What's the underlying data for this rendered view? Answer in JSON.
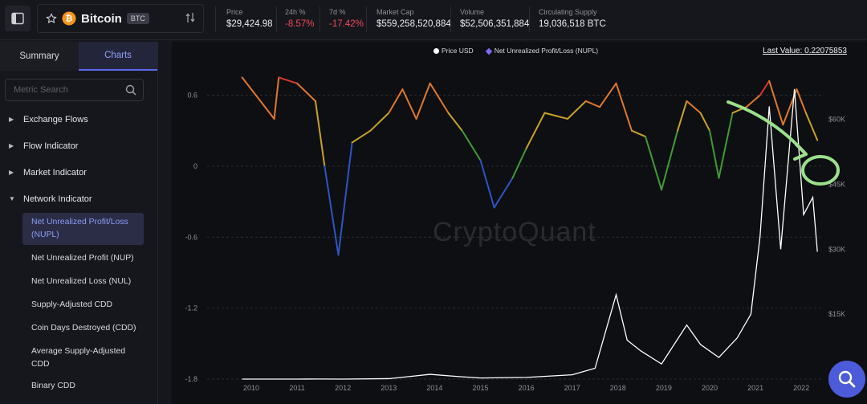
{
  "header": {
    "asset_name": "Bitcoin",
    "asset_ticker": "BTC",
    "stats": [
      {
        "label": "Price",
        "value": "$29,424.98"
      },
      {
        "label": "24h %",
        "value": "-8.57%"
      },
      {
        "label": "7d %",
        "value": "-17.42%"
      },
      {
        "label": "Market Cap",
        "value": "$559,258,520,884"
      },
      {
        "label": "Volume",
        "value": "$52,506,351,884"
      },
      {
        "label": "Circulating Supply",
        "value": "19,036,518 BTC"
      }
    ]
  },
  "sidebar": {
    "tabs": [
      "Summary",
      "Charts"
    ],
    "search_placeholder": "Metric Search",
    "categories": [
      "Exchange Flows",
      "Flow Indicator",
      "Market Indicator",
      "Network Indicator"
    ],
    "subitems": [
      "Net Unrealized Profit/Loss (NUPL)",
      "Net Unrealized Profit (NUP)",
      "Net Unrealized Loss (NUL)",
      "Supply-Adjusted CDD",
      "Coin Days Destroyed (CDD)",
      "Average Supply-Adjusted CDD",
      "Binary CDD"
    ]
  },
  "chart": {
    "legend": [
      "Price USD",
      "Net Unrealized Profit/Loss (NUPL)"
    ],
    "last_value": "Last Value: 0.22075853",
    "watermark": "CryptoQuant"
  },
  "colors": {
    "accent": "#5b6cf0",
    "negative": "#ef4a5a",
    "price_line": "#ffffff"
  },
  "chart_data": {
    "type": "line",
    "left_axis": {
      "ticks": [
        "0.6",
        "0",
        "-0.6",
        "-1.2",
        "-1.8"
      ],
      "values": [
        0.6,
        0,
        -0.6,
        -1.2,
        -1.8
      ]
    },
    "right_axis": {
      "ticks": [
        "$60K",
        "$45K",
        "$30K",
        "$15K"
      ],
      "values": [
        60000,
        45000,
        30000,
        15000
      ]
    },
    "x_ticks": [
      "2010",
      "2011",
      "2012",
      "2013",
      "2014",
      "2015",
      "2016",
      "2017",
      "2018",
      "2019",
      "2020",
      "2021",
      "2022"
    ],
    "series": [
      {
        "name": "Price USD",
        "x": [
          2009.8,
          2010.5,
          2011.0,
          2011.45,
          2012.0,
          2013.0,
          2013.9,
          2014.5,
          2015.0,
          2016.0,
          2017.0,
          2017.5,
          2017.96,
          2018.2,
          2018.5,
          2018.95,
          2019.5,
          2019.8,
          2020.2,
          2020.6,
          2020.9,
          2021.1,
          2021.3,
          2021.55,
          2021.85,
          2022.05,
          2022.25,
          2022.35
        ],
        "values": [
          0,
          0,
          1,
          30,
          5,
          100,
          1100,
          600,
          250,
          400,
          1000,
          2500,
          19500,
          9000,
          6500,
          3500,
          12500,
          8000,
          5000,
          9500,
          15000,
          33000,
          63000,
          30000,
          67000,
          38000,
          42000,
          29425
        ]
      },
      {
        "name": "Net Unrealized Profit/Loss (NUPL)",
        "x": [
          2009.8,
          2010.5,
          2010.6,
          2011.0,
          2011.4,
          2011.6,
          2011.9,
          2012.2,
          2012.6,
          2013.0,
          2013.3,
          2013.6,
          2013.9,
          2014.3,
          2014.6,
          2015.0,
          2015.3,
          2015.7,
          2016.0,
          2016.4,
          2016.9,
          2017.3,
          2017.6,
          2017.96,
          2018.3,
          2018.6,
          2018.95,
          2019.3,
          2019.5,
          2019.8,
          2020.0,
          2020.2,
          2020.5,
          2020.8,
          2021.1,
          2021.3,
          2021.6,
          2021.9,
          2022.1,
          2022.35
        ],
        "values": [
          0.75,
          0.4,
          0.75,
          0.7,
          0.55,
          0,
          -0.75,
          0.2,
          0.3,
          0.45,
          0.65,
          0.4,
          0.7,
          0.45,
          0.3,
          0.05,
          -0.35,
          -0.1,
          0.15,
          0.45,
          0.4,
          0.55,
          0.5,
          0.7,
          0.3,
          0.25,
          -0.2,
          0.3,
          0.55,
          0.45,
          0.3,
          -0.1,
          0.45,
          0.5,
          0.6,
          0.72,
          0.35,
          0.65,
          0.45,
          0.22
        ]
      }
    ]
  }
}
